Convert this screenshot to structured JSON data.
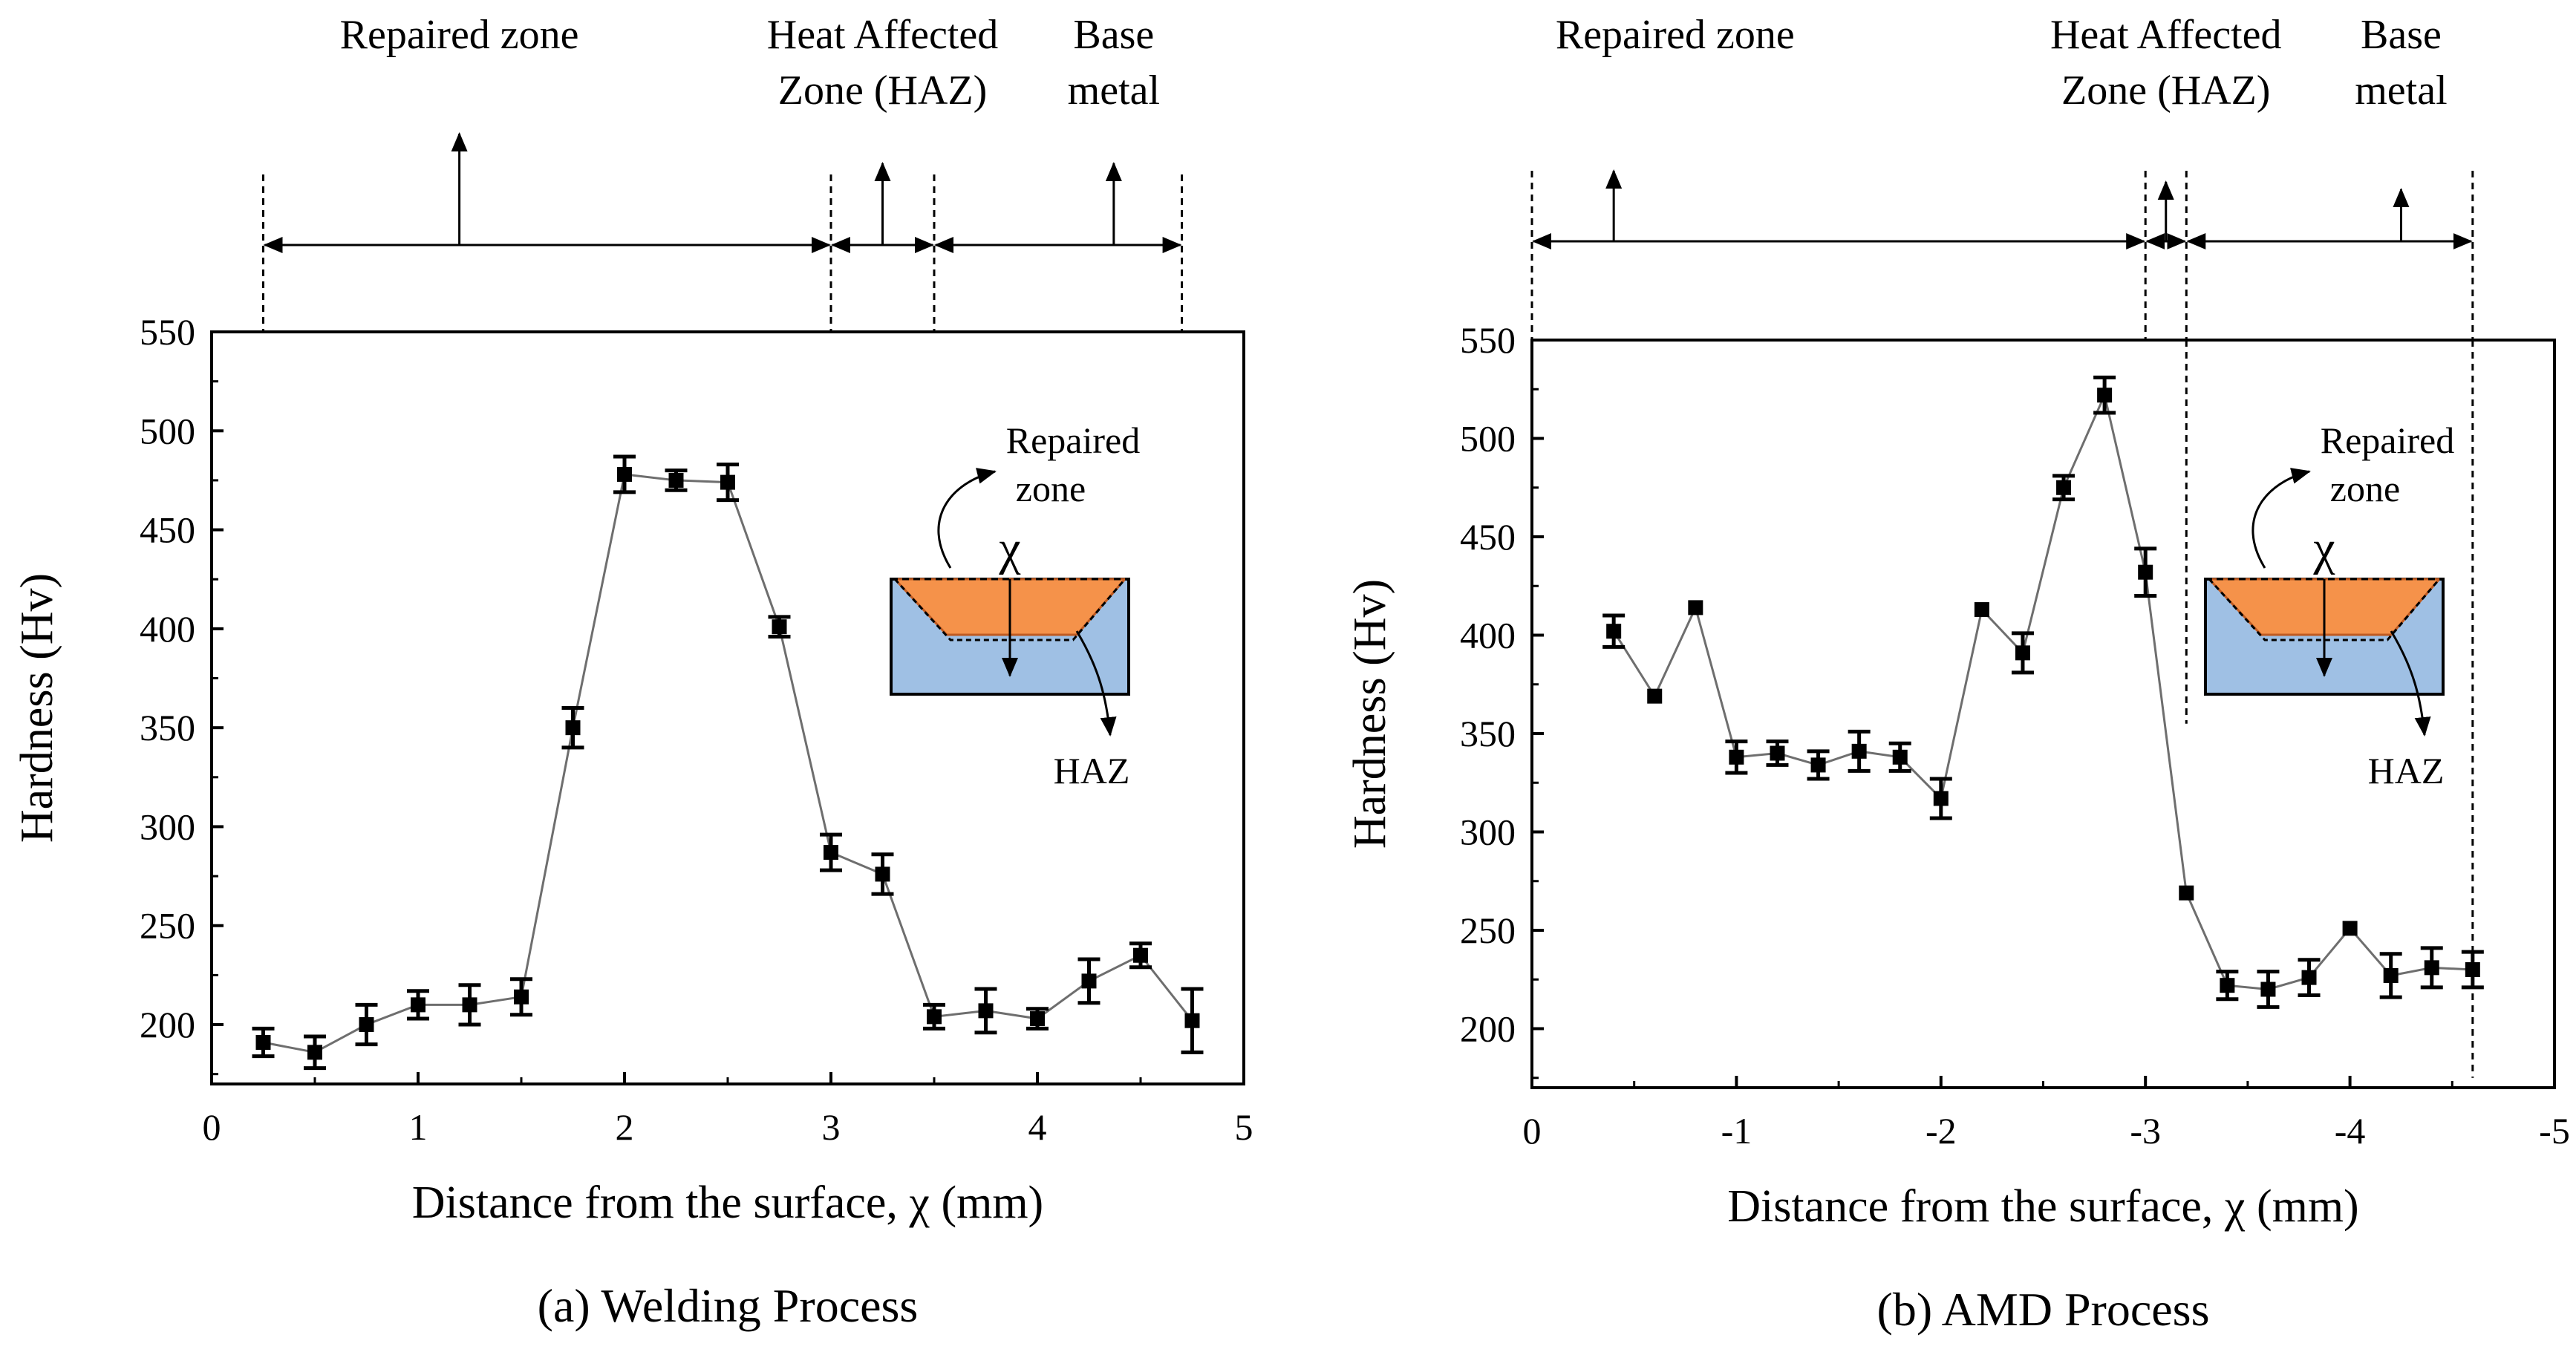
{
  "chart_data": [
    {
      "type": "line",
      "caption": "(a) Welding Process",
      "xlabel": "Distance  from the surface, χ (mm)",
      "ylabel": "Hardness (Hv)",
      "xlim": [
        0,
        5
      ],
      "ylim": [
        170,
        550
      ],
      "xticks": [
        0,
        1,
        2,
        3,
        4,
        5
      ],
      "xtick_labels": [
        "0",
        "1",
        "2",
        "3",
        "4",
        "5"
      ],
      "yticks": [
        200,
        250,
        300,
        350,
        400,
        450,
        500,
        550
      ],
      "ytick_labels": [
        "200",
        "250",
        "300",
        "350",
        "400",
        "450",
        "500",
        "550"
      ],
      "grid": false,
      "series": [
        {
          "name": "Hardness",
          "x": [
            0.25,
            0.5,
            0.75,
            1.0,
            1.25,
            1.5,
            1.75,
            2.0,
            2.25,
            2.5,
            2.75,
            3.0,
            3.25,
            3.5,
            3.75,
            4.0,
            4.25,
            4.5,
            4.75
          ],
          "y": [
            191,
            186,
            200,
            210,
            210,
            214,
            350,
            478,
            475,
            474,
            401,
            287,
            276,
            204,
            207,
            203,
            222,
            235,
            202
          ],
          "err": [
            7,
            8,
            10,
            7,
            10,
            9,
            10,
            9,
            5,
            9,
            5,
            9,
            10,
            6,
            11,
            5,
            11,
            6,
            16
          ]
        }
      ],
      "zones": [
        {
          "lines": [
            "Repaired zone"
          ],
          "from": 0.25,
          "to": 3.0,
          "arrow_x": 1.2
        },
        {
          "lines": [
            "Heat Affected",
            "Zone  (HAZ)"
          ],
          "from": 3.0,
          "to": 3.5,
          "arrow_x": 3.25
        },
        {
          "lines": [
            "Base",
            "metal"
          ],
          "from": 3.5,
          "to": 4.7,
          "arrow_x": 4.37
        }
      ],
      "inset": {
        "repaired_label": [
          "Repaired",
          "zone"
        ],
        "chi_label": "χ",
        "haz_label": "HAZ"
      }
    },
    {
      "type": "line",
      "caption": "(b) AMD  Process",
      "xlabel": "Distance  from the surface, χ (mm)",
      "ylabel": "Hardness (Hv)",
      "xlim": [
        0,
        -5
      ],
      "ylim": [
        170,
        550
      ],
      "xticks": [
        0,
        -1,
        -2,
        -3,
        -4,
        -5
      ],
      "xtick_labels": [
        "0",
        "-1",
        "-2",
        "-3",
        "-4",
        "-5"
      ],
      "yticks": [
        200,
        250,
        300,
        350,
        400,
        450,
        500,
        550
      ],
      "ytick_labels": [
        "200",
        "250",
        "300",
        "350",
        "400",
        "450",
        "500",
        "550"
      ],
      "grid": false,
      "series": [
        {
          "name": "Hardness",
          "x": [
            -0.4,
            -0.6,
            -0.8,
            -1.0,
            -1.2,
            -1.4,
            -1.6,
            -1.8,
            -2.0,
            -2.2,
            -2.4,
            -2.6,
            -2.8,
            -3.0,
            -3.2,
            -3.4,
            -3.6,
            -3.8,
            -4.0,
            -4.2,
            -4.4,
            -4.6
          ],
          "y": [
            402,
            369,
            414,
            338,
            340,
            334,
            341,
            338,
            317,
            413,
            391,
            475,
            522,
            432,
            269,
            222,
            220,
            226,
            251,
            227,
            231,
            230
          ],
          "err": [
            8,
            0,
            0,
            8,
            6,
            7,
            10,
            7,
            10,
            0,
            10,
            6,
            9,
            12,
            0,
            7,
            9,
            9,
            0,
            11,
            10,
            9
          ]
        }
      ],
      "zones": [
        {
          "lines": [
            "Repaired zone"
          ],
          "from": 0.0,
          "to": -3.0,
          "arrow_x": -0.4
        },
        {
          "lines": [
            "Heat Affected",
            "Zone  (HAZ)"
          ],
          "from": -3.0,
          "to": -3.2,
          "arrow_x": -3.1
        },
        {
          "lines": [
            "Base",
            "metal"
          ],
          "from": -3.2,
          "to": -4.6,
          "arrow_x": -4.25
        }
      ],
      "inset": {
        "repaired_label": [
          "Repaired",
          "zone"
        ],
        "chi_label": "χ",
        "haz_label": "HAZ"
      }
    }
  ]
}
